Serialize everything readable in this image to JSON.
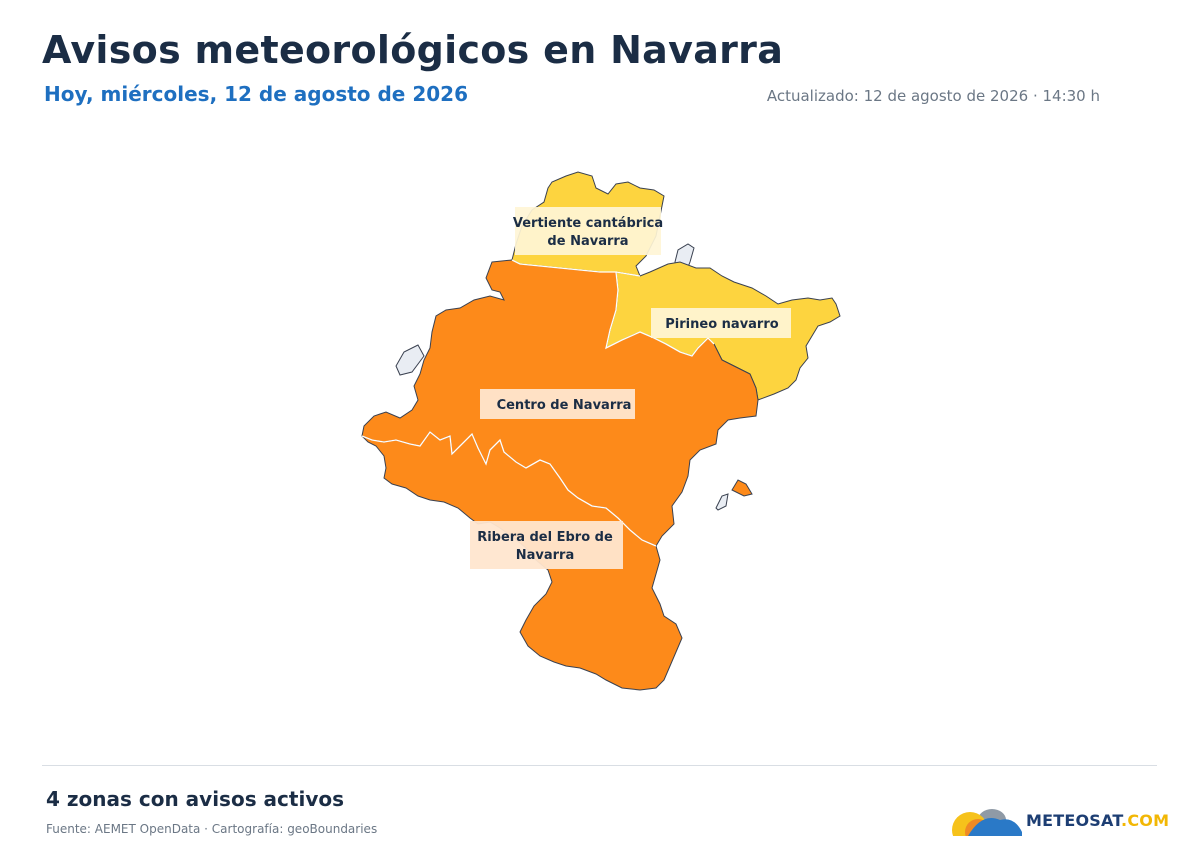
{
  "header": {
    "title": "Avisos meteorológicos en Navarra",
    "subtitle": "Hoy, miércoles, 12 de agosto de 2026",
    "updated": "Actualizado: 12 de agosto de 2026 · 14:30 h"
  },
  "colors": {
    "yellow": "#fdd43f",
    "orange": "#fd8a1a",
    "neighbor": "#e9edf3",
    "border": "#3a4150"
  },
  "zones": [
    {
      "name": "Vertiente cantábrica de Navarra",
      "label_line1": "Vertiente cantábrica",
      "label_line2": "de Navarra",
      "level": "yellow"
    },
    {
      "name": "Pirineo navarro",
      "label_line1": "Pirineo navarro",
      "level": "yellow"
    },
    {
      "name": "Centro de Navarra",
      "label_line1": "Centro de Navarra",
      "level": "orange"
    },
    {
      "name": "Ribera del Ebro de Navarra",
      "label_line1": "Ribera del Ebro de",
      "label_line2": "Navarra",
      "level": "orange"
    }
  ],
  "footer": {
    "zones_count": "4 zonas con avisos activos",
    "source": "Fuente: AEMET OpenData · Cartografía: geoBoundaries",
    "logo_part1": "METEOSAT",
    "logo_part2": ".COM"
  }
}
